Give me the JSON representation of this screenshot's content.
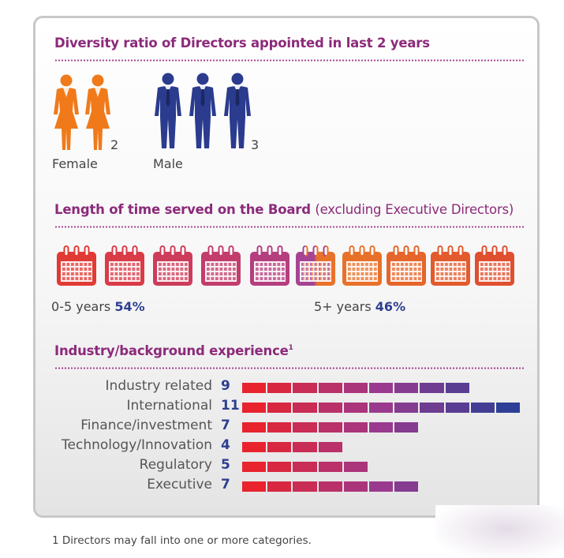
{
  "colors": {
    "title": "#8c2a7a",
    "value": "#2e3f8f",
    "female_figure": "#f07a1a",
    "male_figure": "#2b3b8e",
    "bar_start": "#e8232e",
    "bar_mid": "#9a3a8e",
    "bar_end": "#2d3f96"
  },
  "diversity": {
    "title": "Diversity ratio of Directors appointed in last 2 years",
    "female": {
      "label": "Female",
      "count": "2",
      "value": 2,
      "icon": "female-director-icon"
    },
    "male": {
      "label": "Male",
      "count": "3",
      "value": 3,
      "icon": "male-director-icon"
    }
  },
  "tenure": {
    "title_bold": "Length of time served on the Board",
    "title_light": "(excluding Executive Directors)",
    "total_calendars": 10,
    "short": {
      "label": "0-5 years",
      "pct_text": "54%",
      "value": 54
    },
    "long": {
      "label": "5+ years",
      "pct_text": "46%",
      "value": 46
    },
    "icon": "calendar-icon"
  },
  "industry": {
    "title": "Industry/background experience",
    "title_note": "1"
  },
  "chart_data": {
    "type": "bar",
    "orientation": "horizontal",
    "title": "Industry/background experience",
    "categories": [
      "Industry related",
      "International",
      "Finance/investment",
      "Technology/Innovation",
      "Regulatory",
      "Executive"
    ],
    "values": [
      9,
      11,
      7,
      4,
      5,
      7
    ],
    "value_labels": [
      "9",
      "11",
      "7",
      "4",
      "5",
      "7"
    ],
    "xlim": [
      0,
      11
    ],
    "unit_segments": true
  },
  "footnote": "1  Directors may fall into one or more categories."
}
